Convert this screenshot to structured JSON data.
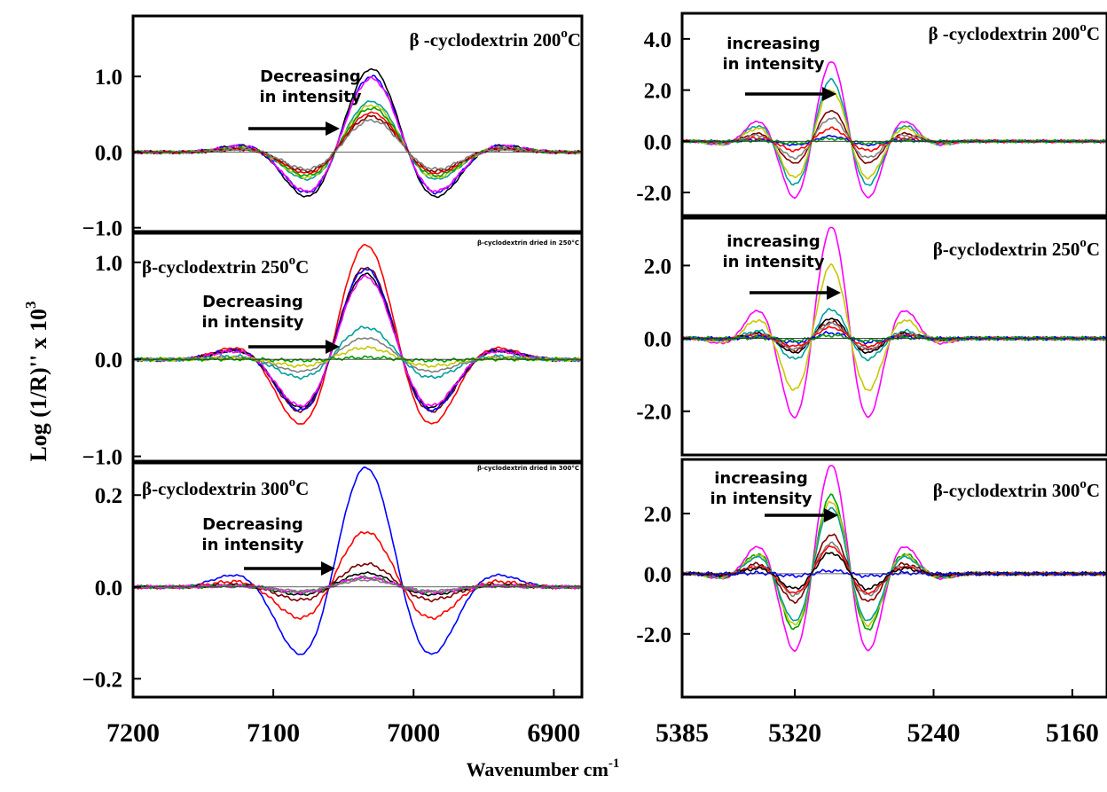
{
  "figure": {
    "ylabel": "Log (1/R)'' x 10",
    "ylabel_sup": "3",
    "xlabel": "Wavenumber cm",
    "xlabel_sup": "-1"
  },
  "chart_data": [
    {
      "type": "line",
      "panel": "left-200",
      "title": "β -cyclodextrin 200°C",
      "annotation": [
        "Decreasing",
        "in intensity"
      ],
      "xlim": [
        7200,
        6880
      ],
      "ylim": [
        -1.05,
        1.8
      ],
      "yticks": [
        {
          "v": 1.0,
          "t": "1.0"
        },
        {
          "v": 0.0,
          "t": "0.0"
        },
        {
          "v": -1.0,
          "t": "−1.0"
        }
      ],
      "wave": {
        "x0": 7030,
        "w": 20,
        "f": 0.0095
      },
      "series": [
        {
          "color": "#000000",
          "amp": 1.1
        },
        {
          "color": "#0000ff",
          "amp": 1.0
        },
        {
          "color": "#ff00ff",
          "amp": 0.97
        },
        {
          "color": "#00a0a0",
          "amp": 0.67
        },
        {
          "color": "#c8c800",
          "amp": 0.62
        },
        {
          "color": "#00a000",
          "amp": 0.58
        },
        {
          "color": "#ff0000",
          "amp": 0.52
        },
        {
          "color": "#800000",
          "amp": 0.47
        },
        {
          "color": "#808080",
          "amp": 0.42
        }
      ]
    },
    {
      "type": "line",
      "panel": "left-250",
      "title": "β-cyclodextrin 250°C",
      "small_label": "β-cyclodextrin dried in 250°C",
      "annotation": [
        "Decreasing",
        "in intensity"
      ],
      "xlim": [
        7200,
        6880
      ],
      "ylim": [
        -1.05,
        1.3
      ],
      "yticks": [
        {
          "v": 1.0,
          "t": "1.0"
        },
        {
          "v": 0.0,
          "t": "0.0"
        },
        {
          "v": -1.0,
          "t": "−1.0"
        }
      ],
      "wave": {
        "x0": 7034,
        "w": 21,
        "f": 0.0095
      },
      "series": [
        {
          "color": "#ff0000",
          "amp": 1.18
        },
        {
          "color": "#800000",
          "amp": 0.95
        },
        {
          "color": "#0000ff",
          "amp": 0.93
        },
        {
          "color": "#000000",
          "amp": 0.88
        },
        {
          "color": "#ff00ff",
          "amp": 0.85
        },
        {
          "color": "#00a0a0",
          "amp": 0.33
        },
        {
          "color": "#808080",
          "amp": 0.22
        },
        {
          "color": "#c8c800",
          "amp": 0.12
        },
        {
          "color": "#00a000",
          "amp": 0.02
        }
      ]
    },
    {
      "type": "line",
      "panel": "left-300",
      "title": "β-cyclodextrin 300°C",
      "small_label": "β-cyclodextrin dried in 300°C",
      "annotation": [
        "Decreasing",
        "in intensity"
      ],
      "xlim": [
        7200,
        6880
      ],
      "ylim": [
        -0.24,
        0.27
      ],
      "yticks": [
        {
          "v": 0.2,
          "t": "0.2"
        },
        {
          "v": 0.0,
          "t": "0.0"
        },
        {
          "v": -0.2,
          "t": "−0.2"
        }
      ],
      "wave": {
        "x0": 7034,
        "w": 21,
        "f": 0.0095
      },
      "series": [
        {
          "color": "#0000ff",
          "amp": 0.26
        },
        {
          "color": "#ff0000",
          "amp": 0.12
        },
        {
          "color": "#800000",
          "amp": 0.05
        },
        {
          "color": "#000000",
          "amp": 0.03
        },
        {
          "color": "#00a000",
          "amp": 0.02
        },
        {
          "color": "#ff00ff",
          "amp": 0.02
        },
        {
          "color": "#808080",
          "amp": 0.015
        }
      ],
      "xticks": [
        {
          "v": 7200,
          "t": "7200"
        },
        {
          "v": 7100,
          "t": "7100"
        },
        {
          "v": 7000,
          "t": "7000"
        },
        {
          "v": 6900,
          "t": "6900"
        }
      ]
    },
    {
      "type": "line",
      "panel": "right-200",
      "title": "β -cyclodextrin 200°C",
      "annotation": [
        "increasing",
        "in intensity"
      ],
      "xlim": [
        5385,
        5140
      ],
      "ylim": [
        -2.9,
        5.0
      ],
      "yticks": [
        {
          "v": 4.0,
          "t": "4.0"
        },
        {
          "v": 2.0,
          "t": "2.0"
        },
        {
          "v": 0.0,
          "t": "0.0"
        },
        {
          "v": -2.0,
          "t": "-2.0"
        }
      ],
      "wave": {
        "x0": 5299,
        "w": 12,
        "f": 0.022
      },
      "series": [
        {
          "color": "#ff00ff",
          "amp": 3.1
        },
        {
          "color": "#00a0a0",
          "amp": 2.4
        },
        {
          "color": "#c8c800",
          "amp": 2.0
        },
        {
          "color": "#800000",
          "amp": 1.2
        },
        {
          "color": "#808080",
          "amp": 0.9
        },
        {
          "color": "#ff0000",
          "amp": 0.5
        },
        {
          "color": "#0000ff",
          "amp": 0.2
        },
        {
          "color": "#00a000",
          "amp": 0.1
        }
      ]
    },
    {
      "type": "line",
      "panel": "right-250",
      "title": "β-cyclodextrin 250°C",
      "annotation": [
        "increasing",
        "in intensity"
      ],
      "xlim": [
        5385,
        5140
      ],
      "ylim": [
        -3.2,
        3.3
      ],
      "yticks": [
        {
          "v": 2.0,
          "t": "2.0"
        },
        {
          "v": 0.0,
          "t": "0.0"
        },
        {
          "v": -2.0,
          "t": "-2.0"
        }
      ],
      "wave": {
        "x0": 5299,
        "w": 12,
        "f": 0.022
      },
      "series": [
        {
          "color": "#ff00ff",
          "amp": 3.05
        },
        {
          "color": "#c8c800",
          "amp": 2.0
        },
        {
          "color": "#00a0a0",
          "amp": 0.8
        },
        {
          "color": "#000000",
          "amp": 0.55
        },
        {
          "color": "#800000",
          "amp": 0.45
        },
        {
          "color": "#808080",
          "amp": 0.4
        },
        {
          "color": "#ff0000",
          "amp": 0.3
        },
        {
          "color": "#0000ff",
          "amp": 0.15
        },
        {
          "color": "#00a000",
          "amp": 0.08
        }
      ]
    },
    {
      "type": "line",
      "panel": "right-300",
      "title": "β-cyclodextrin 300°C",
      "annotation": [
        "increasing",
        "in intensity"
      ],
      "xlim": [
        5385,
        5140
      ],
      "ylim": [
        -4.1,
        3.8
      ],
      "yticks": [
        {
          "v": 2.0,
          "t": "2.0"
        },
        {
          "v": 0.0,
          "t": "0.0"
        },
        {
          "v": -2.0,
          "t": "-2.0"
        }
      ],
      "wave": {
        "x0": 5299,
        "w": 12,
        "f": 0.022
      },
      "series": [
        {
          "color": "#ff00ff",
          "amp": 3.6
        },
        {
          "color": "#00a000",
          "amp": 2.6
        },
        {
          "color": "#c8c800",
          "amp": 2.4
        },
        {
          "color": "#00a0a0",
          "amp": 2.2
        },
        {
          "color": "#800000",
          "amp": 1.3
        },
        {
          "color": "#808080",
          "amp": 1.0
        },
        {
          "color": "#ff0000",
          "amp": 0.9
        },
        {
          "color": "#000000",
          "amp": 0.7
        },
        {
          "color": "#0000ff",
          "amp": 0.1
        }
      ],
      "xticks": [
        {
          "v": 5385,
          "t": "5385"
        },
        {
          "v": 5320,
          "t": "5320"
        },
        {
          "v": 5240,
          "t": "5240"
        },
        {
          "v": 5160,
          "t": "5160"
        }
      ]
    }
  ]
}
